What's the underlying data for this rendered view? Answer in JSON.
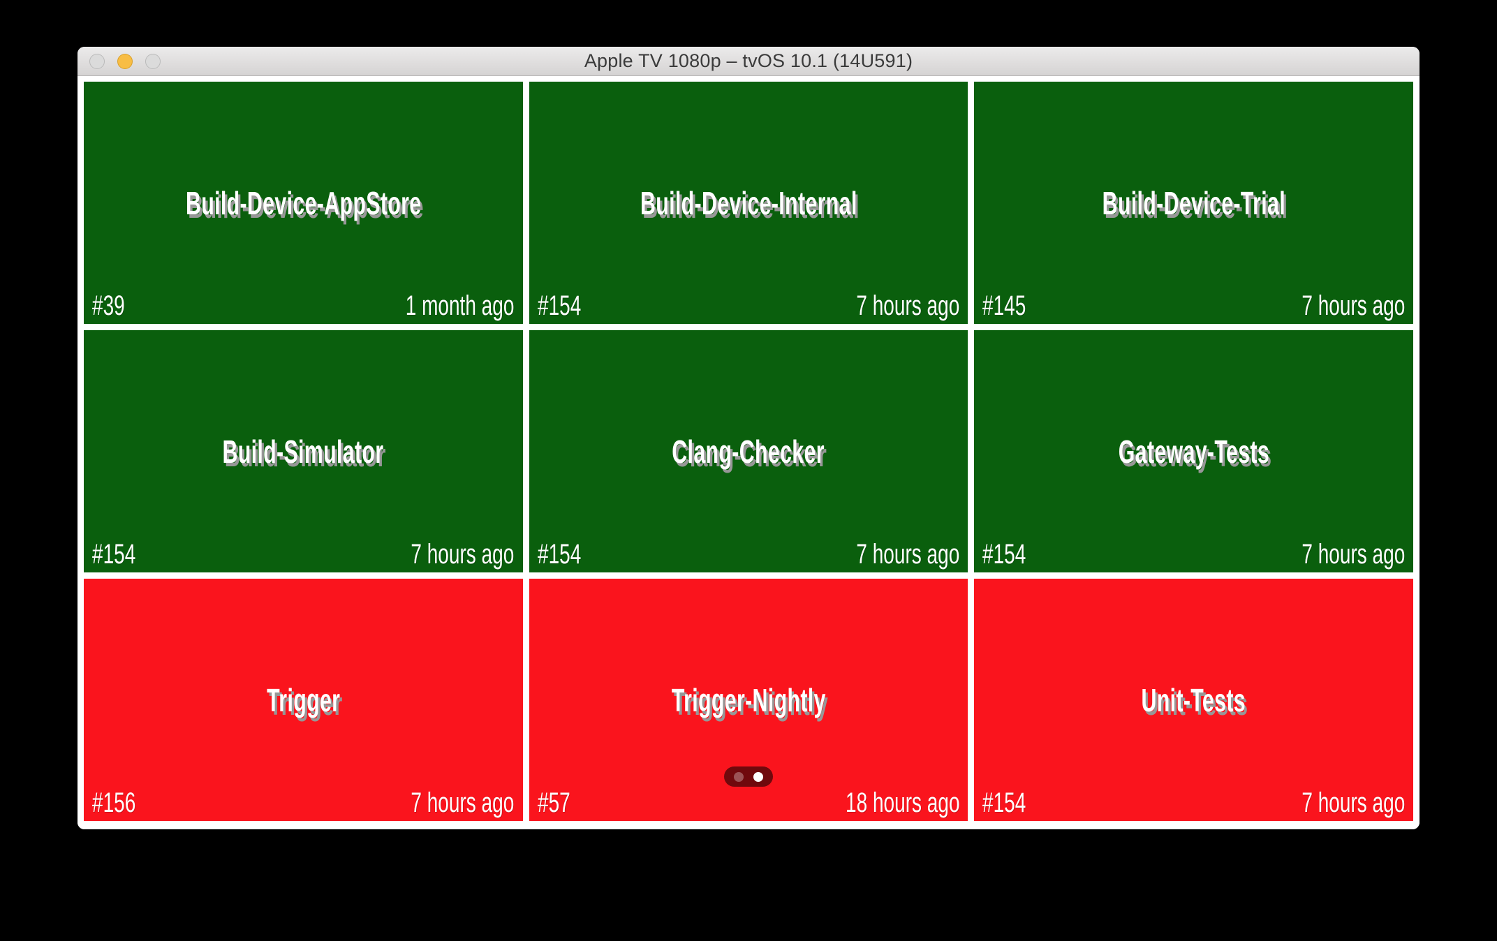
{
  "window": {
    "title": "Apple TV 1080p – tvOS 10.1 (14U591)",
    "traffic_lights": [
      "close",
      "minimize",
      "zoom"
    ]
  },
  "colors": {
    "desktop": "#000000",
    "tile_success": "#0A5F0D",
    "tile_failure": "#FA141D",
    "tile_text": "#FFFFFF",
    "tile_text_shadow": "#979797",
    "titlebar_top": "#ECEBEB",
    "titlebar_bottom": "#D5D3D3",
    "titlebar_text": "#3B3B3B",
    "traffic_inactive": "#DBDBDB",
    "traffic_minimize": "#F8BD44",
    "page_control_bg": "#70090D",
    "page_dot_active": "#FFFFFF"
  },
  "grid": {
    "tiles": [
      {
        "name": "Build-Device-AppStore",
        "build": "#39",
        "time": "1 month ago",
        "status": "success"
      },
      {
        "name": "Build-Device-Internal",
        "build": "#154",
        "time": "7 hours ago",
        "status": "success"
      },
      {
        "name": "Build-Device-Trial",
        "build": "#145",
        "time": "7 hours ago",
        "status": "success"
      },
      {
        "name": "Build-Simulator",
        "build": "#154",
        "time": "7 hours ago",
        "status": "success"
      },
      {
        "name": "Clang-Checker",
        "build": "#154",
        "time": "7 hours ago",
        "status": "success"
      },
      {
        "name": "Gateway-Tests",
        "build": "#154",
        "time": "7 hours ago",
        "status": "success"
      },
      {
        "name": "Trigger",
        "build": "#156",
        "time": "7 hours ago",
        "status": "failure"
      },
      {
        "name": "Trigger-Nightly",
        "build": "#57",
        "time": "18 hours ago",
        "status": "failure"
      },
      {
        "name": "Unit-Tests",
        "build": "#154",
        "time": "7 hours ago",
        "status": "failure"
      }
    ]
  },
  "page_control": {
    "pages": 2,
    "active_index": 1
  }
}
